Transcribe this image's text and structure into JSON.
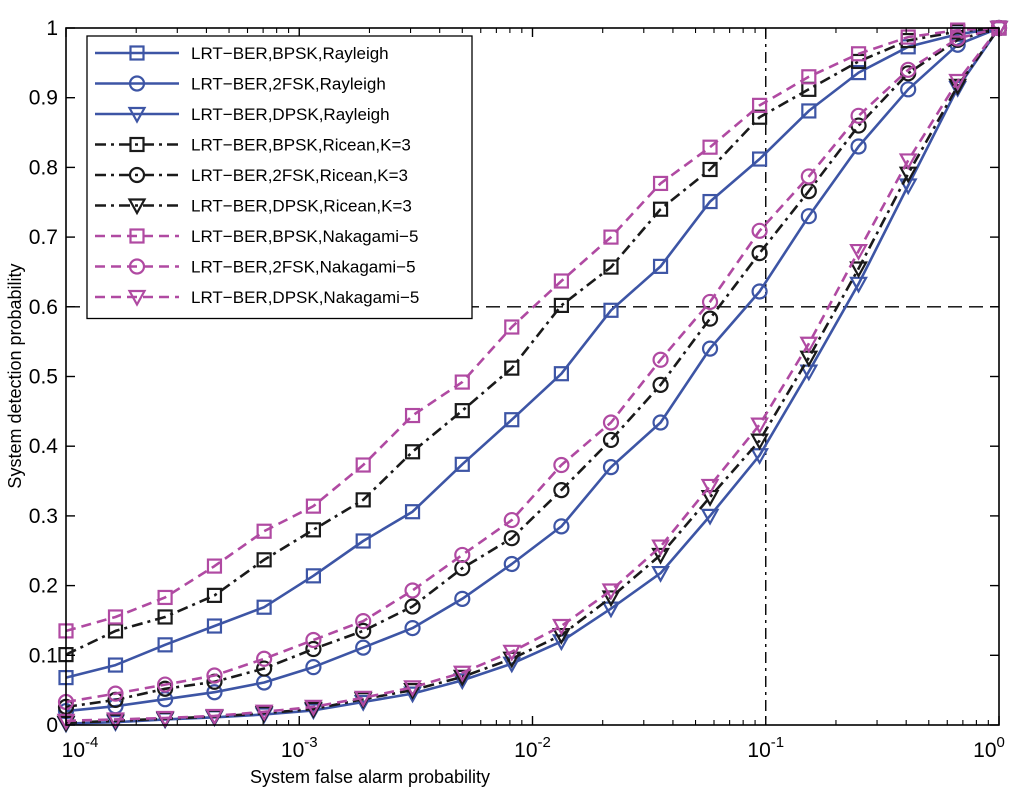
{
  "chart_data": {
    "type": "line",
    "title": "",
    "xlabel": "System false alarm probability",
    "ylabel": "System detection probability",
    "xscale": "log",
    "xlim": [
      0.0001,
      1
    ],
    "ylim": [
      0,
      1
    ],
    "x_ticks": [
      {
        "base": "10",
        "exp": "-4",
        "value": 0.0001
      },
      {
        "base": "10",
        "exp": "-3",
        "value": 0.001
      },
      {
        "base": "10",
        "exp": "-2",
        "value": 0.01
      },
      {
        "base": "10",
        "exp": "-1",
        "value": 0.1
      },
      {
        "base": "10",
        "exp": "0",
        "value": 1
      }
    ],
    "y_ticks": [
      "0",
      "0.1",
      "0.2",
      "0.3",
      "0.4",
      "0.5",
      "0.6",
      "0.7",
      "0.8",
      "0.9",
      "1"
    ],
    "legend_position": "top-left",
    "reference_lines": [
      {
        "orientation": "vertical",
        "value": 0.1
      },
      {
        "orientation": "horizontal",
        "value": 0.6
      }
    ],
    "x": [
      0.0001,
      0.000163,
      0.000266,
      0.000433,
      0.000707,
      0.00115,
      0.00188,
      0.00306,
      0.005,
      0.00815,
      0.0133,
      0.0217,
      0.0354,
      0.0577,
      0.0941,
      0.153,
      0.25,
      0.408,
      0.665,
      1
    ],
    "series": [
      {
        "name": "LRT−BER,BPSK,Rayleigh",
        "color": "#3d55a5",
        "dash": "solid",
        "marker": "square",
        "values": [
          0.068,
          0.086,
          0.115,
          0.142,
          0.169,
          0.214,
          0.264,
          0.306,
          0.374,
          0.438,
          0.504,
          0.595,
          0.658,
          0.751,
          0.812,
          0.881,
          0.936,
          0.973,
          0.991,
          1.0
        ]
      },
      {
        "name": "LRT−BER,2FSK,Rayleigh",
        "color": "#3d55a5",
        "dash": "solid",
        "marker": "circle",
        "values": [
          0.02,
          0.027,
          0.037,
          0.047,
          0.061,
          0.083,
          0.111,
          0.139,
          0.181,
          0.231,
          0.285,
          0.37,
          0.434,
          0.54,
          0.622,
          0.73,
          0.83,
          0.912,
          0.976,
          1.0
        ]
      },
      {
        "name": "LRT−BER,DPSK,Rayleigh",
        "color": "#3d55a5",
        "dash": "solid",
        "marker": "triangle",
        "values": [
          0.002,
          0.004,
          0.008,
          0.011,
          0.015,
          0.021,
          0.033,
          0.045,
          0.064,
          0.088,
          0.12,
          0.167,
          0.218,
          0.3,
          0.387,
          0.507,
          0.633,
          0.774,
          0.914,
          1.0
        ]
      },
      {
        "name": "LRT−BER,BPSK,Ricean,K=3",
        "color": "#1a1a1a",
        "dash": "dashdot",
        "marker": "square",
        "values": [
          0.101,
          0.135,
          0.155,
          0.186,
          0.237,
          0.28,
          0.323,
          0.392,
          0.451,
          0.512,
          0.602,
          0.657,
          0.74,
          0.797,
          0.872,
          0.912,
          0.952,
          0.982,
          0.995,
          1.0
        ]
      },
      {
        "name": "LRT−BER,2FSK,Ricean,K=3",
        "color": "#1a1a1a",
        "dash": "dashdot",
        "marker": "circle",
        "values": [
          0.026,
          0.036,
          0.052,
          0.062,
          0.081,
          0.109,
          0.135,
          0.17,
          0.225,
          0.268,
          0.337,
          0.409,
          0.488,
          0.583,
          0.677,
          0.766,
          0.86,
          0.935,
          0.983,
          1.0
        ]
      },
      {
        "name": "LRT−BER,DPSK,Ricean,K=3",
        "color": "#1a1a1a",
        "dash": "dashdot",
        "marker": "triangle",
        "values": [
          0.003,
          0.006,
          0.009,
          0.012,
          0.017,
          0.023,
          0.037,
          0.05,
          0.069,
          0.095,
          0.129,
          0.183,
          0.244,
          0.327,
          0.408,
          0.527,
          0.655,
          0.791,
          0.917,
          1.0
        ]
      },
      {
        "name": "LRT−BER,BPSK,Nakagami−5",
        "color": "#b04aa2",
        "dash": "dashed",
        "marker": "square",
        "values": [
          0.135,
          0.155,
          0.183,
          0.228,
          0.278,
          0.314,
          0.373,
          0.444,
          0.492,
          0.571,
          0.637,
          0.7,
          0.777,
          0.829,
          0.889,
          0.93,
          0.963,
          0.987,
          0.997,
          1.0
        ]
      },
      {
        "name": "LRT−BER,2FSK,Nakagami−5",
        "color": "#b04aa2",
        "dash": "dashed",
        "marker": "circle",
        "values": [
          0.033,
          0.045,
          0.058,
          0.071,
          0.095,
          0.122,
          0.149,
          0.193,
          0.244,
          0.294,
          0.373,
          0.434,
          0.524,
          0.607,
          0.709,
          0.787,
          0.874,
          0.94,
          0.985,
          1.0
        ]
      },
      {
        "name": "LRT−BER,DPSK,Nakagami−5",
        "color": "#b04aa2",
        "dash": "dashed",
        "marker": "triangle",
        "values": [
          0.006,
          0.008,
          0.01,
          0.013,
          0.019,
          0.026,
          0.039,
          0.054,
          0.075,
          0.105,
          0.142,
          0.193,
          0.256,
          0.343,
          0.431,
          0.547,
          0.68,
          0.81,
          0.924,
          1.0
        ]
      }
    ]
  }
}
